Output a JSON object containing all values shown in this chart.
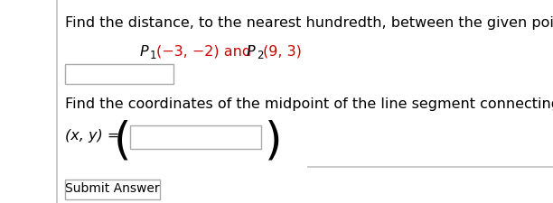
{
  "bg_color": "#ffffff",
  "left_bar_color": "#cccccc",
  "right_bar_color": "#cccccc",
  "text_color": "#000000",
  "red_color": "#cc0000",
  "box_border": "#aaaaaa",
  "box_fill": "#ffffff",
  "line1": "Find the distance, to the nearest hundredth, between the given points.",
  "line3": "Find the coordinates of the midpoint of the line segment connecting the points.",
  "xy_label": "(x, y) =",
  "submit_text": "Submit Answer",
  "font_size": 11.5,
  "font_family": "DejaVu Sans"
}
